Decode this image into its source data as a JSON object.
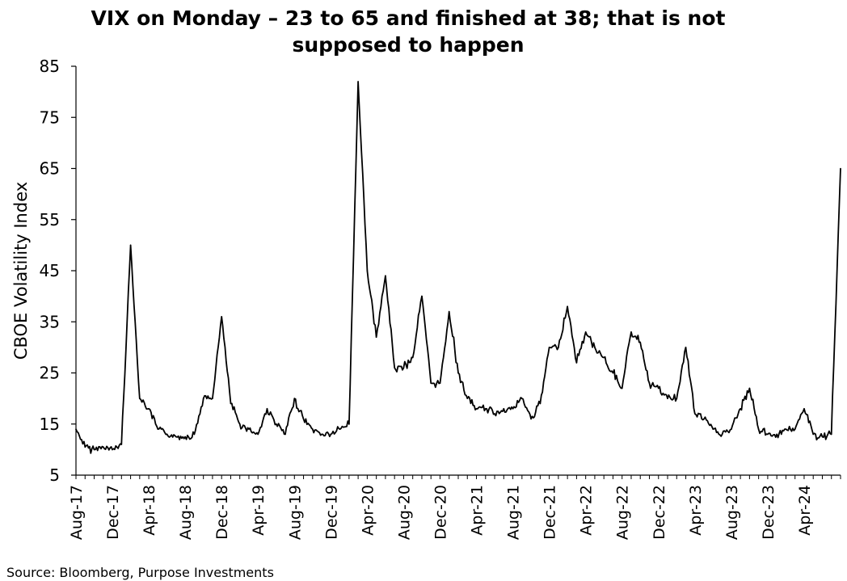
{
  "title": "VIX on Monday – 23 to 65 and finished at 38; that is not supposed to happen",
  "source": "Source: Bloomberg, Purpose Investments",
  "colors": {
    "line": "#000000",
    "axis": "#000000",
    "background": "#ffffff"
  },
  "chart_data": {
    "type": "line",
    "title": "VIX on Monday – 23 to 65 and finished at 38; that is not supposed to happen",
    "ylabel": "CBOE Volatility Index",
    "xlabel": "",
    "ylim": [
      5,
      85
    ],
    "yticks": [
      5,
      15,
      25,
      35,
      45,
      55,
      65,
      75,
      85
    ],
    "xlim": [
      "2017-08",
      "2024-08"
    ],
    "xtick_labels": [
      "Aug-17",
      "Dec-17",
      "Apr-18",
      "Aug-18",
      "Dec-18",
      "Apr-19",
      "Aug-19",
      "Dec-19",
      "Apr-20",
      "Aug-20",
      "Dec-20",
      "Apr-21",
      "Aug-21",
      "Dec-21",
      "Apr-22",
      "Aug-22",
      "Dec-22",
      "Apr-23",
      "Aug-23",
      "Dec-23",
      "Apr-24"
    ],
    "grid": false,
    "legend": "none",
    "series": [
      {
        "x": [
          "2017-08",
          "2017-09",
          "2017-10",
          "2017-11",
          "2017-12",
          "2018-01",
          "2018-02",
          "2018-03",
          "2018-04",
          "2018-05",
          "2018-06",
          "2018-07",
          "2018-08",
          "2018-09",
          "2018-10",
          "2018-11",
          "2018-12",
          "2019-01",
          "2019-02",
          "2019-03",
          "2019-04",
          "2019-05",
          "2019-06",
          "2019-07",
          "2019-08",
          "2019-09",
          "2019-10",
          "2019-11",
          "2019-12",
          "2020-01",
          "2020-02",
          "2020-03",
          "2020-04",
          "2020-05",
          "2020-06",
          "2020-07",
          "2020-08",
          "2020-09",
          "2020-10",
          "2020-11",
          "2020-12",
          "2021-01",
          "2021-02",
          "2021-03",
          "2021-04",
          "2021-05",
          "2021-06",
          "2021-07",
          "2021-08",
          "2021-09",
          "2021-10",
          "2021-11",
          "2021-12",
          "2022-01",
          "2022-02",
          "2022-03",
          "2022-04",
          "2022-05",
          "2022-06",
          "2022-07",
          "2022-08",
          "2022-09",
          "2022-10",
          "2022-11",
          "2022-12",
          "2023-01",
          "2023-02",
          "2023-03",
          "2023-04",
          "2023-05",
          "2023-06",
          "2023-07",
          "2023-08",
          "2023-09",
          "2023-10",
          "2023-11",
          "2023-12",
          "2024-01",
          "2024-02",
          "2024-03",
          "2024-04",
          "2024-05",
          "2024-06",
          "2024-07",
          "2024-08"
        ],
        "values": [
          14,
          10.5,
          10,
          10.5,
          10,
          11,
          50,
          20,
          18,
          14,
          13,
          12.5,
          12.5,
          13,
          20,
          20,
          36,
          19,
          15,
          14,
          13,
          18,
          15,
          13,
          20,
          16,
          14,
          13,
          13,
          14,
          15,
          82,
          45,
          32,
          44,
          26,
          26,
          28,
          40,
          23,
          23,
          37,
          25,
          20,
          18,
          18,
          17,
          18,
          18,
          20,
          16,
          19,
          30,
          30,
          38,
          27,
          33,
          30,
          28,
          25,
          22,
          33,
          31,
          23,
          22,
          20,
          20,
          30,
          17,
          16,
          14,
          13,
          14,
          18,
          22,
          14,
          13,
          13,
          14,
          14,
          18,
          13,
          12.5,
          13,
          65
        ]
      }
    ]
  }
}
